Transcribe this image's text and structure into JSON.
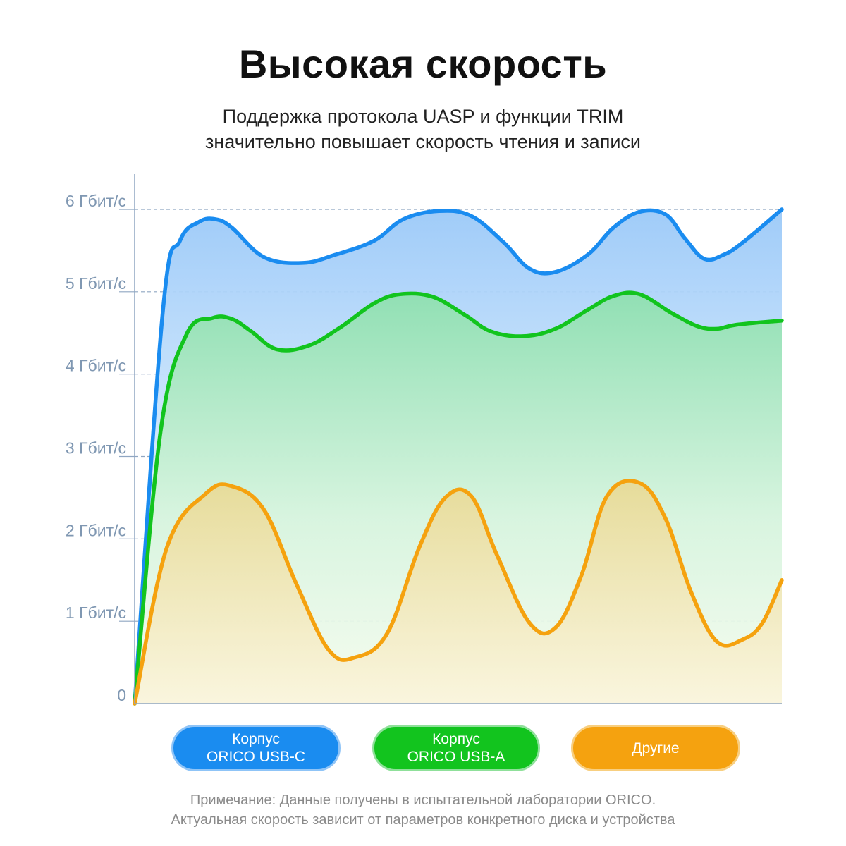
{
  "header": {
    "title": "Высокая скорость",
    "subtitle_line1": "Поддержка протокола UASP и функции TRIM",
    "subtitle_line2": "значительно повышает скорость чтения и записи"
  },
  "legend": {
    "usb_c": {
      "line1": "Корпус",
      "line2": "ORICO USB-C"
    },
    "usb_a": {
      "line1": "Корпус",
      "line2": "ORICO USB-A"
    },
    "other": {
      "line1": "Другие"
    }
  },
  "note": {
    "line1": "Примечание: Данные получены в испытательной лаборатории ORICO.",
    "line2": "Актуальная скорость зависит от параметров конкретного диска и устройства"
  },
  "colors": {
    "usb_c": "#1a8cf0",
    "usb_a": "#12c41e",
    "other": "#f5a20f",
    "grid": "#8fa6c2",
    "axis_label": "#7f97b2"
  },
  "chart_data": {
    "type": "area",
    "title": "",
    "xlabel": "",
    "ylabel": "",
    "ylim": [
      0,
      6
    ],
    "xlim": [
      0,
      100
    ],
    "yticks": [
      0,
      1,
      2,
      3,
      4,
      5,
      6
    ],
    "ytick_labels": [
      "0",
      "1 Гбит/с",
      "2 Гбит/с",
      "3 Гбит/с",
      "4 Гбит/с",
      "5 Гбит/с",
      "6 Гбит/с"
    ],
    "grid": true,
    "grid_style": "dashed",
    "legend_position": "bottom",
    "series": [
      {
        "name": "Корпус ORICO USB-C",
        "color": "#1a8cf0",
        "points": [
          [
            0,
            0
          ],
          [
            4.4,
            4.8
          ],
          [
            7,
            5.62
          ],
          [
            10,
            5.85
          ],
          [
            12.5,
            5.88
          ],
          [
            15,
            5.78
          ],
          [
            20,
            5.42
          ],
          [
            26,
            5.35
          ],
          [
            31,
            5.45
          ],
          [
            37,
            5.62
          ],
          [
            41.5,
            5.88
          ],
          [
            47,
            5.98
          ],
          [
            52,
            5.92
          ],
          [
            57,
            5.6
          ],
          [
            61,
            5.28
          ],
          [
            65,
            5.24
          ],
          [
            70,
            5.45
          ],
          [
            74,
            5.78
          ],
          [
            78,
            5.97
          ],
          [
            82,
            5.94
          ],
          [
            85,
            5.65
          ],
          [
            88,
            5.4
          ],
          [
            91,
            5.45
          ],
          [
            94,
            5.6
          ],
          [
            100,
            6.0
          ]
        ]
      },
      {
        "name": "Корпус ORICO USB-A",
        "color": "#12c41e",
        "points": [
          [
            0,
            0
          ],
          [
            4,
            3.3
          ],
          [
            8,
            4.48
          ],
          [
            12,
            4.68
          ],
          [
            15,
            4.67
          ],
          [
            18,
            4.52
          ],
          [
            22,
            4.3
          ],
          [
            27,
            4.35
          ],
          [
            32,
            4.58
          ],
          [
            37,
            4.86
          ],
          [
            41,
            4.97
          ],
          [
            46,
            4.94
          ],
          [
            51,
            4.72
          ],
          [
            55,
            4.52
          ],
          [
            60,
            4.46
          ],
          [
            65,
            4.55
          ],
          [
            70,
            4.78
          ],
          [
            74,
            4.95
          ],
          [
            78,
            4.97
          ],
          [
            83,
            4.74
          ],
          [
            87,
            4.58
          ],
          [
            90,
            4.55
          ],
          [
            93,
            4.6
          ],
          [
            100,
            4.65
          ]
        ]
      },
      {
        "name": "Другие",
        "color": "#f5a20f",
        "points": [
          [
            0,
            0
          ],
          [
            5,
            1.9
          ],
          [
            11,
            2.55
          ],
          [
            15,
            2.64
          ],
          [
            20,
            2.35
          ],
          [
            25,
            1.45
          ],
          [
            30,
            0.65
          ],
          [
            34,
            0.56
          ],
          [
            39,
            0.85
          ],
          [
            44,
            1.9
          ],
          [
            48,
            2.5
          ],
          [
            52,
            2.52
          ],
          [
            56,
            1.8
          ],
          [
            61,
            0.98
          ],
          [
            65,
            0.92
          ],
          [
            69,
            1.55
          ],
          [
            73,
            2.52
          ],
          [
            78,
            2.68
          ],
          [
            82,
            2.25
          ],
          [
            86,
            1.35
          ],
          [
            90,
            0.75
          ],
          [
            94,
            0.78
          ],
          [
            97,
            0.98
          ],
          [
            100,
            1.5
          ]
        ]
      }
    ]
  }
}
